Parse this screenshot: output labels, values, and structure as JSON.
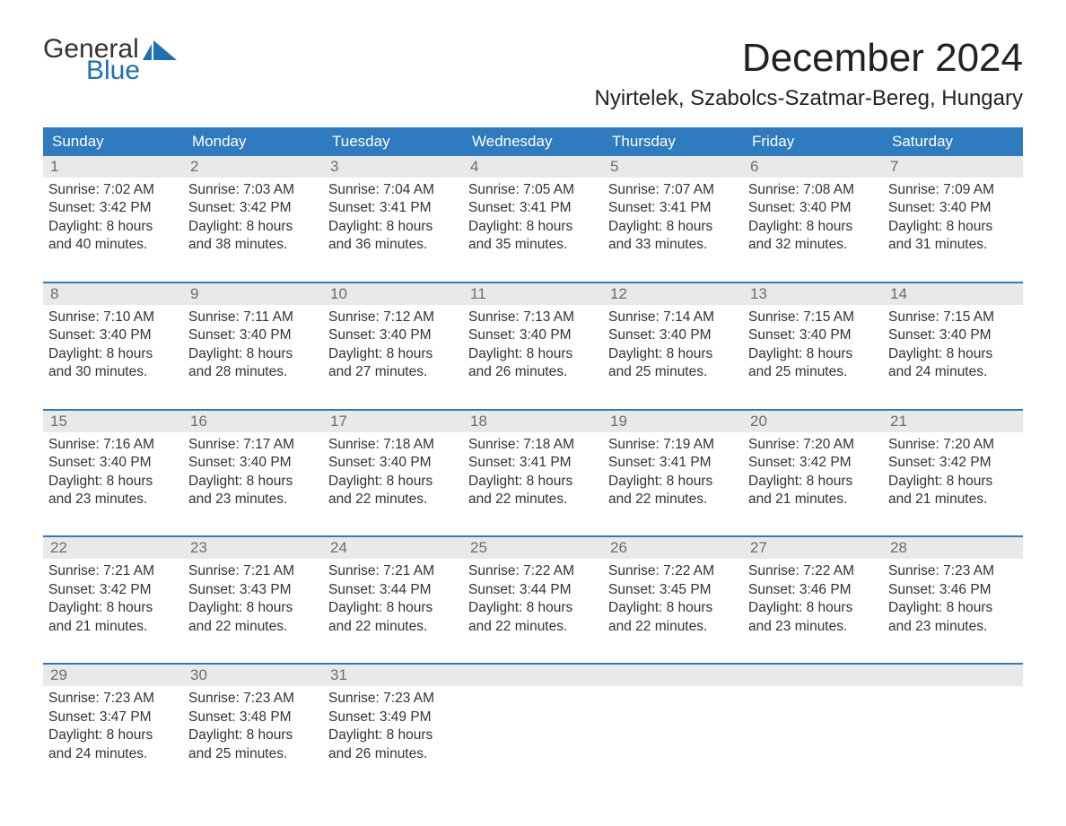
{
  "logo": {
    "general": "General",
    "blue": "Blue",
    "flag_color": "#1f6fb2"
  },
  "title": "December 2024",
  "location": "Nyirtelek, Szabolcs-Szatmar-Bereg, Hungary",
  "colors": {
    "header_bg": "#2f7bbf",
    "header_text": "#ffffff",
    "week_border": "#2f7bbf",
    "daynum_bg": "#e9e9e9",
    "daynum_text": "#6d6d6d",
    "body_text": "#333333",
    "page_bg": "#ffffff"
  },
  "fonts": {
    "title_pt": 44,
    "location_pt": 24,
    "dow_pt": 17,
    "body_pt": 15.5
  },
  "days_of_week": [
    "Sunday",
    "Monday",
    "Tuesday",
    "Wednesday",
    "Thursday",
    "Friday",
    "Saturday"
  ],
  "weeks": [
    [
      {
        "n": "1",
        "sunrise": "Sunrise: 7:02 AM",
        "sunset": "Sunset: 3:42 PM",
        "daylight": "Daylight: 8 hours and 40 minutes."
      },
      {
        "n": "2",
        "sunrise": "Sunrise: 7:03 AM",
        "sunset": "Sunset: 3:42 PM",
        "daylight": "Daylight: 8 hours and 38 minutes."
      },
      {
        "n": "3",
        "sunrise": "Sunrise: 7:04 AM",
        "sunset": "Sunset: 3:41 PM",
        "daylight": "Daylight: 8 hours and 36 minutes."
      },
      {
        "n": "4",
        "sunrise": "Sunrise: 7:05 AM",
        "sunset": "Sunset: 3:41 PM",
        "daylight": "Daylight: 8 hours and 35 minutes."
      },
      {
        "n": "5",
        "sunrise": "Sunrise: 7:07 AM",
        "sunset": "Sunset: 3:41 PM",
        "daylight": "Daylight: 8 hours and 33 minutes."
      },
      {
        "n": "6",
        "sunrise": "Sunrise: 7:08 AM",
        "sunset": "Sunset: 3:40 PM",
        "daylight": "Daylight: 8 hours and 32 minutes."
      },
      {
        "n": "7",
        "sunrise": "Sunrise: 7:09 AM",
        "sunset": "Sunset: 3:40 PM",
        "daylight": "Daylight: 8 hours and 31 minutes."
      }
    ],
    [
      {
        "n": "8",
        "sunrise": "Sunrise: 7:10 AM",
        "sunset": "Sunset: 3:40 PM",
        "daylight": "Daylight: 8 hours and 30 minutes."
      },
      {
        "n": "9",
        "sunrise": "Sunrise: 7:11 AM",
        "sunset": "Sunset: 3:40 PM",
        "daylight": "Daylight: 8 hours and 28 minutes."
      },
      {
        "n": "10",
        "sunrise": "Sunrise: 7:12 AM",
        "sunset": "Sunset: 3:40 PM",
        "daylight": "Daylight: 8 hours and 27 minutes."
      },
      {
        "n": "11",
        "sunrise": "Sunrise: 7:13 AM",
        "sunset": "Sunset: 3:40 PM",
        "daylight": "Daylight: 8 hours and 26 minutes."
      },
      {
        "n": "12",
        "sunrise": "Sunrise: 7:14 AM",
        "sunset": "Sunset: 3:40 PM",
        "daylight": "Daylight: 8 hours and 25 minutes."
      },
      {
        "n": "13",
        "sunrise": "Sunrise: 7:15 AM",
        "sunset": "Sunset: 3:40 PM",
        "daylight": "Daylight: 8 hours and 25 minutes."
      },
      {
        "n": "14",
        "sunrise": "Sunrise: 7:15 AM",
        "sunset": "Sunset: 3:40 PM",
        "daylight": "Daylight: 8 hours and 24 minutes."
      }
    ],
    [
      {
        "n": "15",
        "sunrise": "Sunrise: 7:16 AM",
        "sunset": "Sunset: 3:40 PM",
        "daylight": "Daylight: 8 hours and 23 minutes."
      },
      {
        "n": "16",
        "sunrise": "Sunrise: 7:17 AM",
        "sunset": "Sunset: 3:40 PM",
        "daylight": "Daylight: 8 hours and 23 minutes."
      },
      {
        "n": "17",
        "sunrise": "Sunrise: 7:18 AM",
        "sunset": "Sunset: 3:40 PM",
        "daylight": "Daylight: 8 hours and 22 minutes."
      },
      {
        "n": "18",
        "sunrise": "Sunrise: 7:18 AM",
        "sunset": "Sunset: 3:41 PM",
        "daylight": "Daylight: 8 hours and 22 minutes."
      },
      {
        "n": "19",
        "sunrise": "Sunrise: 7:19 AM",
        "sunset": "Sunset: 3:41 PM",
        "daylight": "Daylight: 8 hours and 22 minutes."
      },
      {
        "n": "20",
        "sunrise": "Sunrise: 7:20 AM",
        "sunset": "Sunset: 3:42 PM",
        "daylight": "Daylight: 8 hours and 21 minutes."
      },
      {
        "n": "21",
        "sunrise": "Sunrise: 7:20 AM",
        "sunset": "Sunset: 3:42 PM",
        "daylight": "Daylight: 8 hours and 21 minutes."
      }
    ],
    [
      {
        "n": "22",
        "sunrise": "Sunrise: 7:21 AM",
        "sunset": "Sunset: 3:42 PM",
        "daylight": "Daylight: 8 hours and 21 minutes."
      },
      {
        "n": "23",
        "sunrise": "Sunrise: 7:21 AM",
        "sunset": "Sunset: 3:43 PM",
        "daylight": "Daylight: 8 hours and 22 minutes."
      },
      {
        "n": "24",
        "sunrise": "Sunrise: 7:21 AM",
        "sunset": "Sunset: 3:44 PM",
        "daylight": "Daylight: 8 hours and 22 minutes."
      },
      {
        "n": "25",
        "sunrise": "Sunrise: 7:22 AM",
        "sunset": "Sunset: 3:44 PM",
        "daylight": "Daylight: 8 hours and 22 minutes."
      },
      {
        "n": "26",
        "sunrise": "Sunrise: 7:22 AM",
        "sunset": "Sunset: 3:45 PM",
        "daylight": "Daylight: 8 hours and 22 minutes."
      },
      {
        "n": "27",
        "sunrise": "Sunrise: 7:22 AM",
        "sunset": "Sunset: 3:46 PM",
        "daylight": "Daylight: 8 hours and 23 minutes."
      },
      {
        "n": "28",
        "sunrise": "Sunrise: 7:23 AM",
        "sunset": "Sunset: 3:46 PM",
        "daylight": "Daylight: 8 hours and 23 minutes."
      }
    ],
    [
      {
        "n": "29",
        "sunrise": "Sunrise: 7:23 AM",
        "sunset": "Sunset: 3:47 PM",
        "daylight": "Daylight: 8 hours and 24 minutes."
      },
      {
        "n": "30",
        "sunrise": "Sunrise: 7:23 AM",
        "sunset": "Sunset: 3:48 PM",
        "daylight": "Daylight: 8 hours and 25 minutes."
      },
      {
        "n": "31",
        "sunrise": "Sunrise: 7:23 AM",
        "sunset": "Sunset: 3:49 PM",
        "daylight": "Daylight: 8 hours and 26 minutes."
      },
      null,
      null,
      null,
      null
    ]
  ]
}
